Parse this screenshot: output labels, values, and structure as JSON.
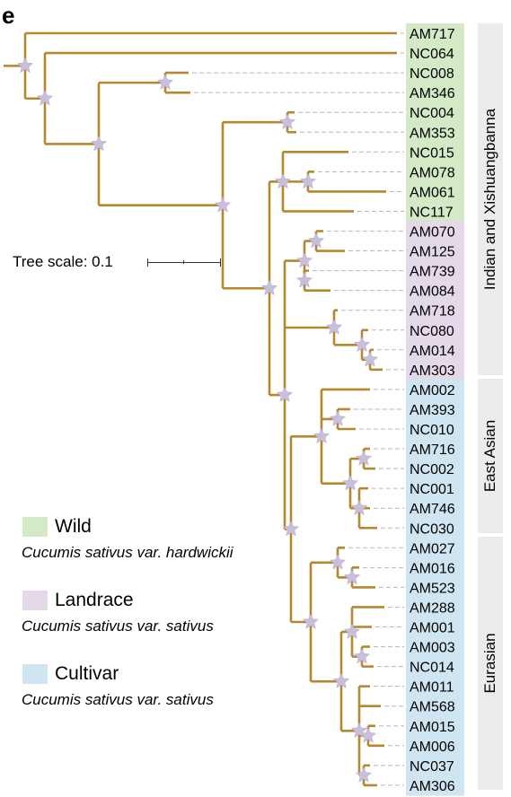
{
  "panel_letter": "e",
  "scale_label": "Tree scale: 0.1",
  "colors": {
    "branch": "#b5882f",
    "node_star": "#c8bfdc",
    "leader": "#b8b8b8",
    "wild": "#d4e9c6",
    "landrace": "#e4d9e8",
    "cultivar": "#cfe6f2",
    "group_bar": "#ececec"
  },
  "legend": [
    {
      "label": "Wild",
      "subtitle": "Cucumis sativus var. hardwickii",
      "color": "#d4e9c6"
    },
    {
      "label": "Landrace",
      "subtitle": "Cucumis sativus var. sativus",
      "color": "#e4d9e8"
    },
    {
      "label": "Cultivar",
      "subtitle": "Cucumis sativus var. sativus",
      "color": "#cfe6f2"
    }
  ],
  "groups": [
    {
      "label": "Indian and Xishuangbanna",
      "from": 0,
      "to": 17
    },
    {
      "label": "East Asian",
      "from": 18,
      "to": 25
    },
    {
      "label": "Eurasian",
      "from": 26,
      "to": 38
    }
  ],
  "leaves": [
    {
      "name": "AM717",
      "category": "wild"
    },
    {
      "name": "NC064",
      "category": "wild"
    },
    {
      "name": "NC008",
      "category": "wild"
    },
    {
      "name": "AM346",
      "category": "wild"
    },
    {
      "name": "NC004",
      "category": "wild"
    },
    {
      "name": "AM353",
      "category": "wild"
    },
    {
      "name": "NC015",
      "category": "wild"
    },
    {
      "name": "AM078",
      "category": "wild"
    },
    {
      "name": "AM061",
      "category": "wild"
    },
    {
      "name": "NC117",
      "category": "wild"
    },
    {
      "name": "AM070",
      "category": "landrace"
    },
    {
      "name": "AM125",
      "category": "landrace"
    },
    {
      "name": "AM739",
      "category": "landrace"
    },
    {
      "name": "AM084",
      "category": "landrace"
    },
    {
      "name": "AM718",
      "category": "landrace"
    },
    {
      "name": "NC080",
      "category": "landrace"
    },
    {
      "name": "AM014",
      "category": "landrace"
    },
    {
      "name": "AM303",
      "category": "landrace"
    },
    {
      "name": "AM002",
      "category": "cultivar"
    },
    {
      "name": "AM393",
      "category": "cultivar"
    },
    {
      "name": "NC010",
      "category": "cultivar"
    },
    {
      "name": "AM716",
      "category": "cultivar"
    },
    {
      "name": "NC002",
      "category": "cultivar"
    },
    {
      "name": "NC001",
      "category": "cultivar"
    },
    {
      "name": "AM746",
      "category": "cultivar"
    },
    {
      "name": "NC030",
      "category": "cultivar"
    },
    {
      "name": "AM027",
      "category": "cultivar"
    },
    {
      "name": "AM016",
      "category": "cultivar"
    },
    {
      "name": "AM523",
      "category": "cultivar"
    },
    {
      "name": "AM288",
      "category": "cultivar"
    },
    {
      "name": "AM001",
      "category": "cultivar"
    },
    {
      "name": "AM003",
      "category": "cultivar"
    },
    {
      "name": "NC014",
      "category": "cultivar"
    },
    {
      "name": "AM011",
      "category": "cultivar"
    },
    {
      "name": "AM568",
      "category": "cultivar"
    },
    {
      "name": "AM015",
      "category": "cultivar"
    },
    {
      "name": "AM006",
      "category": "cultivar"
    },
    {
      "name": "NC037",
      "category": "cultivar"
    },
    {
      "name": "AM306",
      "category": "cultivar"
    }
  ]
}
